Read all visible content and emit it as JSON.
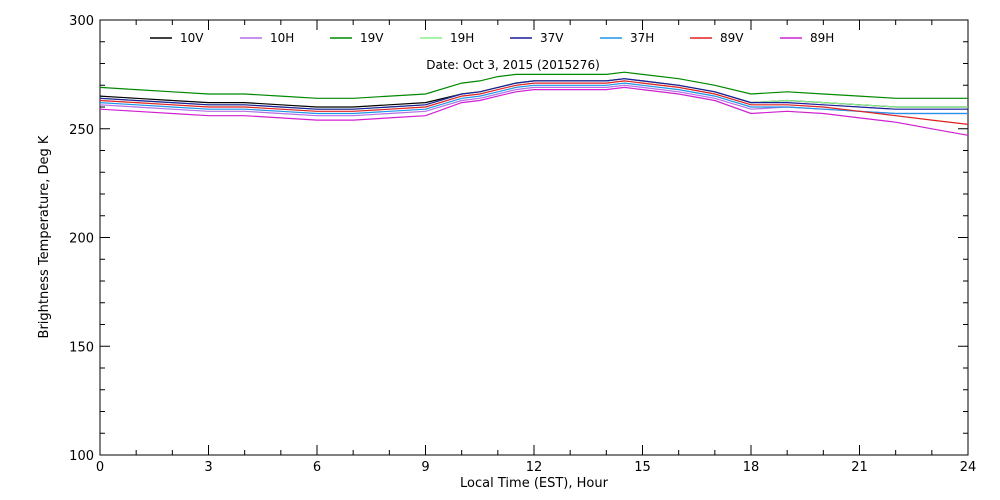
{
  "chart_data": {
    "type": "line",
    "title": "",
    "annotation": "Date: Oct  3, 2015 (2015276)",
    "xlabel": "Local Time (EST), Hour",
    "ylabel": "Brightness Temperature, Deg  K",
    "xlim": [
      0,
      24
    ],
    "ylim": [
      100,
      300
    ],
    "x_ticks": [
      0,
      3,
      6,
      9,
      12,
      15,
      18,
      21,
      24
    ],
    "x_tick_labels": [
      "0",
      "3",
      "6",
      "9",
      "12",
      "15",
      "18",
      "21",
      "24"
    ],
    "y_ticks": [
      100,
      150,
      200,
      250,
      300
    ],
    "y_tick_labels": [
      "100",
      "150",
      "200",
      "250",
      "300"
    ],
    "grid": false,
    "legend_position": "top",
    "x": [
      0,
      1,
      2,
      3,
      4,
      5,
      6,
      7,
      8,
      9,
      10,
      10.5,
      11,
      11.5,
      12,
      12.5,
      13,
      13.5,
      14,
      14.5,
      15,
      16,
      17,
      18,
      19,
      20,
      21,
      22,
      23,
      24
    ],
    "series": [
      {
        "name": "10V",
        "color": "#000000",
        "values": [
          265,
          264,
          263,
          262,
          262,
          261,
          260,
          260,
          261,
          262,
          266,
          267,
          269,
          271,
          272,
          272,
          272,
          272,
          272,
          273,
          272,
          270,
          267,
          262,
          263,
          262,
          261,
          260,
          260,
          260
        ]
      },
      {
        "name": "10H",
        "color": "#b46ee8",
        "values": [
          261,
          260,
          259,
          258,
          258,
          257,
          256,
          256,
          257,
          258,
          263,
          264,
          266,
          268,
          269,
          269,
          269,
          269,
          269,
          270,
          269,
          267,
          264,
          259,
          260,
          259,
          258,
          257,
          257,
          257
        ]
      },
      {
        "name": "19V",
        "color": "#008800",
        "values": [
          269,
          268,
          267,
          266,
          266,
          265,
          264,
          264,
          265,
          266,
          271,
          272,
          274,
          275,
          275,
          275,
          275,
          275,
          275,
          276,
          275,
          273,
          270,
          266,
          267,
          266,
          265,
          264,
          264,
          264
        ]
      },
      {
        "name": "19H",
        "color": "#88f088",
        "values": [
          264,
          263,
          262,
          261,
          261,
          260,
          259,
          259,
          260,
          261,
          266,
          267,
          269,
          271,
          272,
          272,
          272,
          272,
          272,
          273,
          272,
          270,
          267,
          262,
          263,
          262,
          261,
          260,
          260,
          260
        ]
      },
      {
        "name": "37V",
        "color": "#1a1a9c",
        "values": [
          264,
          263,
          262,
          261,
          261,
          260,
          259,
          259,
          260,
          261,
          266,
          267,
          269,
          271,
          272,
          272,
          272,
          272,
          272,
          273,
          272,
          270,
          267,
          262,
          262,
          261,
          260,
          259,
          259,
          259
        ]
      },
      {
        "name": "37H",
        "color": "#1e96e8",
        "values": [
          262,
          261,
          260,
          259,
          259,
          258,
          257,
          257,
          258,
          259,
          264,
          265,
          267,
          269,
          270,
          270,
          270,
          270,
          270,
          271,
          270,
          268,
          265,
          260,
          260,
          259,
          258,
          257,
          257,
          257
        ]
      },
      {
        "name": "89V",
        "color": "#e02020",
        "values": [
          263,
          262,
          261,
          260,
          260,
          259,
          258,
          258,
          259,
          260,
          265,
          266,
          268,
          270,
          271,
          271,
          271,
          271,
          271,
          272,
          271,
          269,
          266,
          261,
          261,
          260,
          258,
          256,
          254,
          252
        ]
      },
      {
        "name": "89H",
        "color": "#d020d0",
        "values": [
          259,
          258,
          257,
          256,
          256,
          255,
          254,
          254,
          255,
          256,
          262,
          263,
          265,
          267,
          268,
          268,
          268,
          268,
          268,
          269,
          268,
          266,
          263,
          257,
          258,
          257,
          255,
          253,
          250,
          247
        ]
      }
    ]
  }
}
